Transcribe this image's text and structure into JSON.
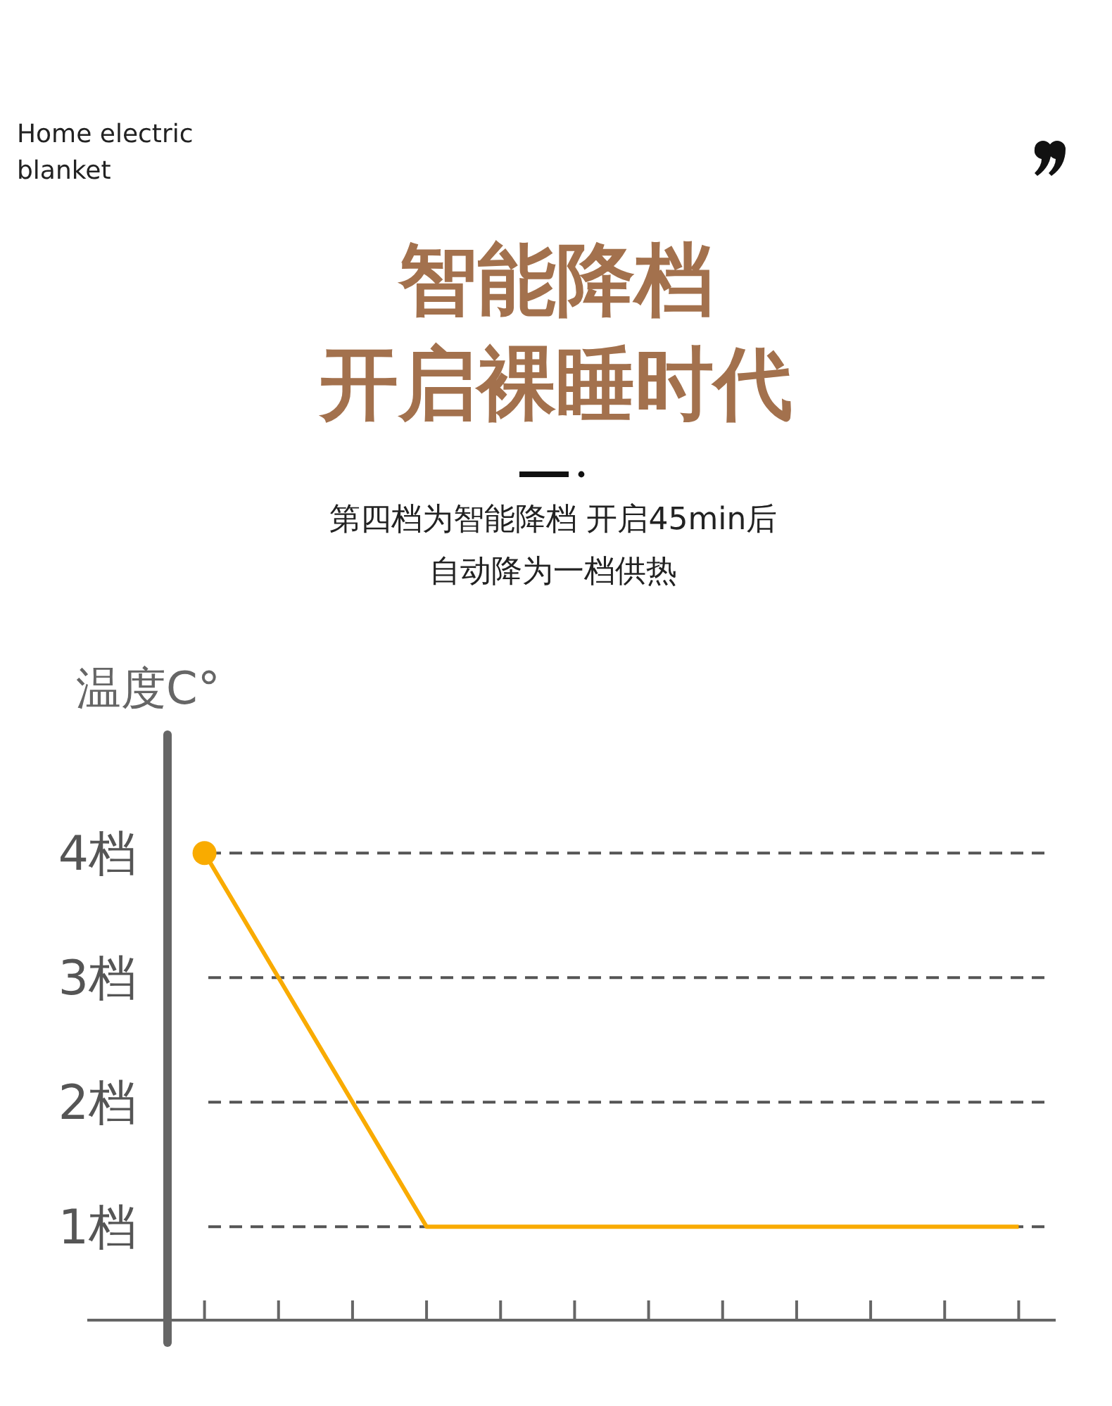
{
  "chart_data": {
    "type": "line",
    "title": "智能降档",
    "subtitle": "开启裸睡时代",
    "ylabel": "温度C°",
    "annotations": [
      "Home electric blanket",
      "第四档为智能降档  开启45min后",
      "自动降为一档供热"
    ],
    "categories": [
      null,
      null,
      null,
      null,
      null,
      null,
      null,
      null,
      null,
      null,
      null,
      null
    ],
    "series": [
      {
        "color": "#f9ab00",
        "values": [
          4,
          3,
          2,
          1,
          1,
          1,
          1,
          1,
          1,
          1,
          1,
          1
        ],
        "marker": "none"
      },
      {
        "type": "scatter",
        "color": "#f9ab00",
        "values": [
          4,
          null,
          null,
          null,
          null,
          null,
          null,
          null,
          null,
          null,
          null,
          null
        ],
        "marker": "circle"
      }
    ],
    "ylim": [
      0.25,
      4.95
    ],
    "yticks": [
      {
        "value": 1,
        "label": "1档"
      },
      {
        "value": 2,
        "label": "2档"
      },
      {
        "value": 3,
        "label": "3档"
      },
      {
        "value": 4,
        "label": "4档"
      }
    ],
    "tick_labels": "y",
    "grid": "y"
  }
}
